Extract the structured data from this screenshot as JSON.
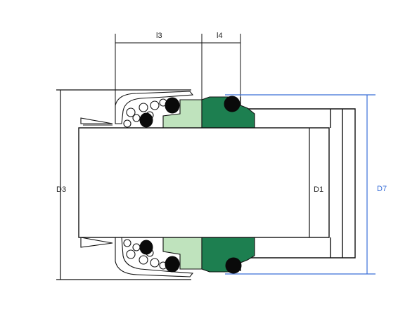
{
  "labels": {
    "l3": "l3",
    "l4": "l4",
    "d3": "D3",
    "d1": "D1",
    "d7": "D7"
  },
  "colors": {
    "line": "#111111",
    "stationary_seat": "#1d7f50",
    "rotary_face": "#bfe3bd",
    "oring": "#0a0a0a",
    "d7_dimension": "#3a6fd8"
  }
}
